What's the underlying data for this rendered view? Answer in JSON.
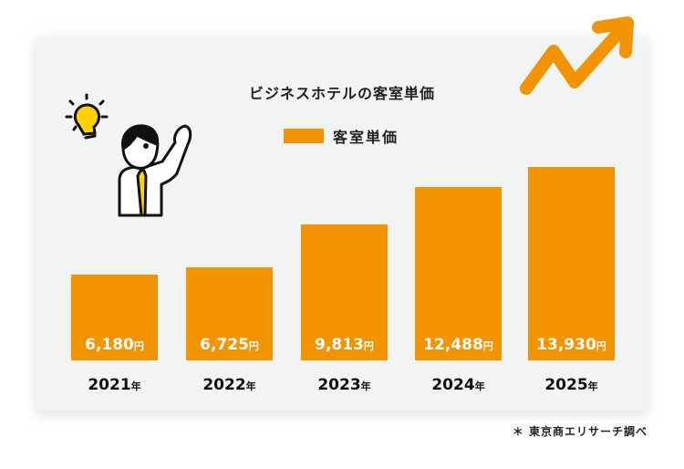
{
  "chart_data": {
    "type": "bar",
    "title": "ビジネスホテルの客室単価",
    "categories": [
      "2021年",
      "2022年",
      "2023年",
      "2024年",
      "2025年"
    ],
    "series": [
      {
        "name": "客室単価",
        "values": [
          6180,
          6725,
          9813,
          12488,
          13930
        ]
      }
    ],
    "value_labels": [
      "6,180",
      "6,725",
      "9,813",
      "12,488",
      "13,930"
    ],
    "value_unit": "円",
    "year_unit": "年",
    "years": [
      "2021",
      "2022",
      "2023",
      "2024",
      "2025"
    ],
    "legend": "top-center",
    "grid": false,
    "ylim": [
      0,
      14000
    ],
    "color": "#f29400"
  },
  "source": "＊ 東京商エリサーチ調べ",
  "decorations": {
    "illustration": "businessman-with-lightbulb",
    "arrow": "trend-up-arrow-icon"
  }
}
